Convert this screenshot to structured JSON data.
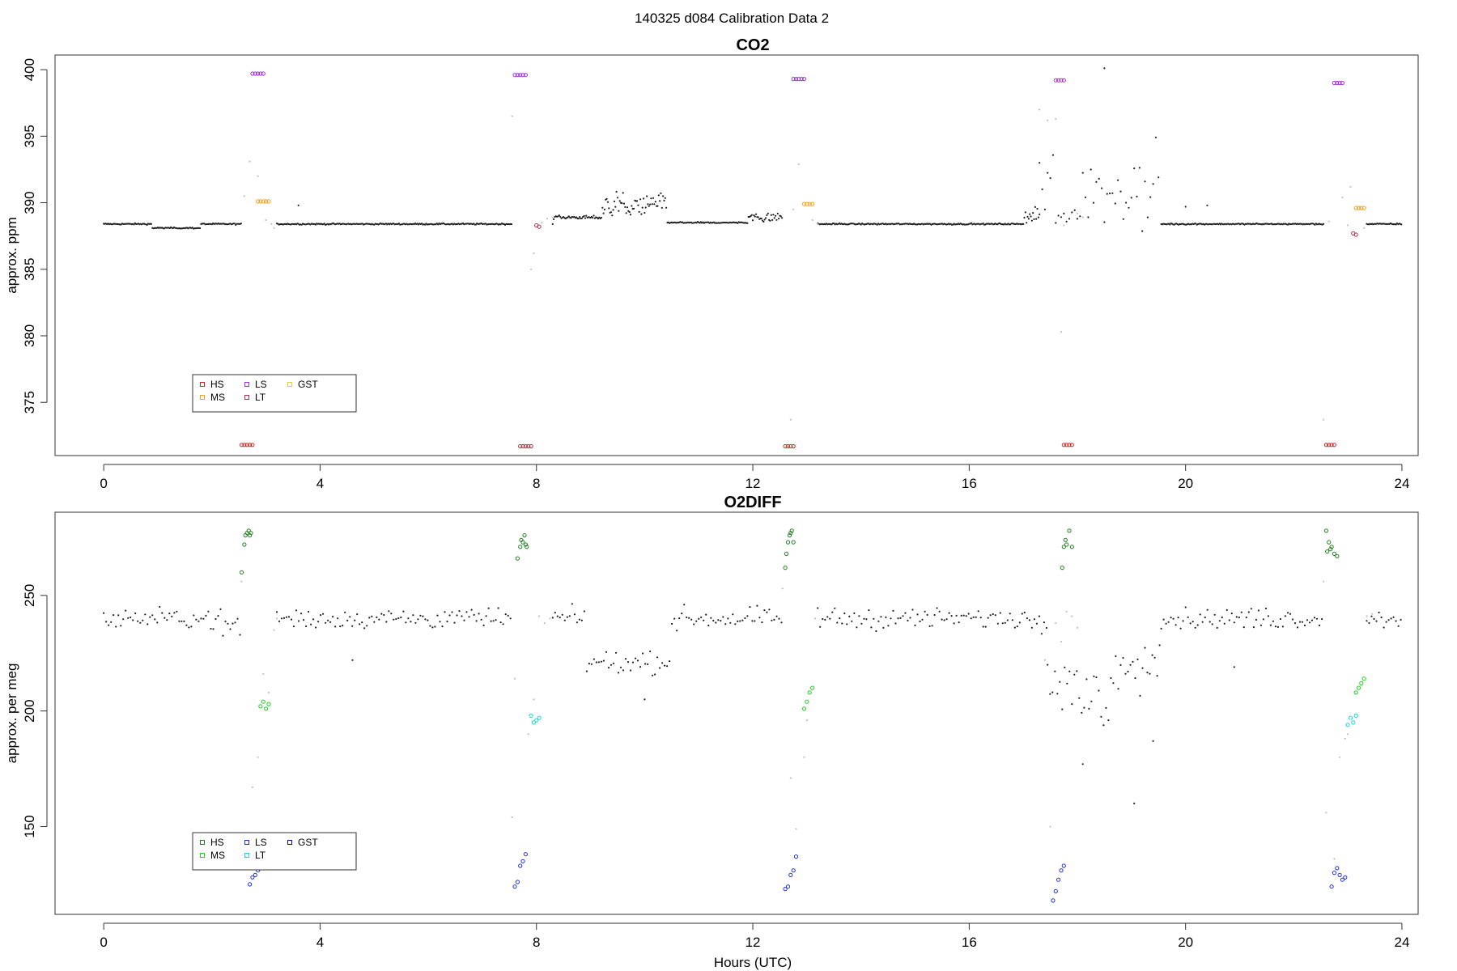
{
  "page": {
    "suptitle": "140325   d084   Calibration Data 2"
  },
  "chart_data": [
    {
      "type": "scatter",
      "title": "CO2",
      "xlabel": "",
      "ylabel": "approx. ppm",
      "xlim": [
        -0.9,
        24.3
      ],
      "ylim": [
        371.0,
        401.1
      ],
      "xticks": [
        0,
        4,
        8,
        12,
        16,
        20,
        24
      ],
      "yticks": [
        375,
        380,
        385,
        390,
        395,
        400
      ],
      "legend": {
        "placement": "bottom-left",
        "entries": [
          {
            "label": "HS",
            "color": "#e02020",
            "marker": "open-square"
          },
          {
            "label": "MS",
            "color": "#f0a020",
            "marker": "open-square"
          },
          {
            "label": "LS",
            "color": "#a030e0",
            "marker": "open-square"
          },
          {
            "label": "LT",
            "color": "#b03050",
            "marker": "open-square"
          },
          {
            "label": "GST",
            "color": "#e8d020",
            "marker": "open-square"
          }
        ]
      },
      "series": [
        {
          "name": "HS",
          "color": "#e02020",
          "marker": "open-circle",
          "x": [
            2.55,
            2.6,
            2.65,
            2.7,
            2.75,
            7.7,
            7.75,
            7.8,
            7.85,
            7.9,
            12.6,
            12.65,
            12.7,
            12.75,
            17.75,
            17.8,
            17.85,
            17.9,
            22.6,
            22.65,
            22.7,
            22.75
          ],
          "y": [
            371.8,
            371.8,
            371.8,
            371.8,
            371.8,
            371.7,
            371.7,
            371.7,
            371.7,
            371.7,
            371.7,
            371.7,
            371.7,
            371.7,
            371.8,
            371.8,
            371.8,
            371.8,
            371.8,
            371.8,
            371.8,
            371.8
          ]
        },
        {
          "name": "MS",
          "color": "#f0a020",
          "marker": "open-circle",
          "x": [
            2.85,
            2.9,
            2.95,
            3.0,
            3.05,
            12.95,
            13.0,
            13.05,
            13.1,
            23.15,
            23.2,
            23.25,
            23.3
          ],
          "y": [
            390.1,
            390.1,
            390.1,
            390.1,
            390.1,
            389.9,
            389.9,
            389.9,
            389.9,
            389.6,
            389.6,
            389.6,
            389.6
          ]
        },
        {
          "name": "LS",
          "color": "#a030e0",
          "marker": "open-circle",
          "x": [
            2.75,
            2.8,
            2.85,
            2.9,
            2.95,
            7.6,
            7.65,
            7.7,
            7.75,
            7.8,
            12.75,
            12.8,
            12.85,
            12.9,
            12.95,
            17.6,
            17.65,
            17.7,
            17.75,
            22.75,
            22.8,
            22.85,
            22.9
          ],
          "y": [
            399.7,
            399.7,
            399.7,
            399.7,
            399.7,
            399.6,
            399.6,
            399.6,
            399.6,
            399.6,
            399.3,
            399.3,
            399.3,
            399.3,
            399.3,
            399.2,
            399.2,
            399.2,
            399.2,
            399.0,
            399.0,
            399.0,
            399.0
          ]
        },
        {
          "name": "LT",
          "color": "#b03050",
          "marker": "open-circle",
          "x": [
            8.0,
            8.05,
            23.1,
            23.15
          ],
          "y": [
            388.3,
            388.2,
            387.7,
            387.6
          ]
        },
        {
          "name": "GST",
          "color": "#e8d020",
          "marker": "open-circle",
          "x": [],
          "y": []
        },
        {
          "name": "",
          "color": "#222222",
          "marker": "dot",
          "generator": "baseline-co2"
        },
        {
          "name": "",
          "color": "#c0c0c0",
          "marker": "dot",
          "x": [
            2.6,
            2.7,
            2.85,
            3.0,
            3.1,
            3.15,
            7.55,
            7.9,
            7.95,
            8.1,
            8.2,
            8.3,
            12.7,
            12.75,
            12.85,
            13.1,
            13.2,
            17.3,
            17.45,
            17.6,
            17.7,
            17.75,
            18.0,
            18.1,
            22.55,
            22.65,
            22.9,
            23.0,
            23.05,
            23.3
          ],
          "y": [
            390.5,
            393.1,
            392.0,
            388.7,
            388.4,
            388.1,
            396.5,
            385.0,
            386.2,
            388.5,
            388.8,
            388.9,
            373.7,
            389.5,
            392.9,
            388.7,
            388.4,
            397.0,
            396.2,
            396.3,
            380.3,
            388.3,
            389.2,
            388.9,
            373.7,
            388.6,
            390.4,
            388.3,
            391.2,
            388.1
          ]
        }
      ]
    },
    {
      "type": "scatter",
      "title": "O2DIFF",
      "xlabel": "Hours (UTC)",
      "ylabel": "approx. per meg",
      "xlim": [
        -0.9,
        24.3
      ],
      "ylim": [
        112,
        286
      ],
      "xticks": [
        0,
        4,
        8,
        12,
        16,
        20,
        24
      ],
      "yticks": [
        150,
        200,
        250
      ],
      "legend": {
        "placement": "bottom-left",
        "entries": [
          {
            "label": "HS",
            "color": "#208020",
            "marker": "open-square"
          },
          {
            "label": "MS",
            "color": "#20d020",
            "marker": "open-square"
          },
          {
            "label": "LS",
            "color": "#2030e0",
            "marker": "open-square"
          },
          {
            "label": "LT",
            "color": "#20d0d0",
            "marker": "open-square"
          },
          {
            "label": "GST",
            "color": "#101090",
            "marker": "open-square"
          }
        ]
      },
      "series": [
        {
          "name": "HS",
          "color": "#208020",
          "marker": "open-circle",
          "x": [
            2.55,
            2.6,
            2.62,
            2.65,
            2.68,
            2.7,
            2.72,
            7.65,
            7.7,
            7.72,
            7.75,
            7.78,
            7.8,
            7.82,
            12.6,
            12.62,
            12.65,
            12.68,
            12.7,
            12.72,
            12.75,
            17.72,
            17.75,
            17.78,
            17.8,
            17.85,
            17.9,
            22.6,
            22.62,
            22.65,
            22.68,
            22.7,
            22.75,
            22.8
          ],
          "y": [
            260,
            272,
            276,
            277,
            278,
            276,
            277,
            266,
            271,
            274,
            273,
            276,
            272,
            271,
            262,
            268,
            273,
            276,
            277,
            278,
            273,
            262,
            271,
            274,
            272,
            278,
            271,
            278,
            269,
            273,
            270,
            271,
            268,
            267
          ]
        },
        {
          "name": "MS",
          "color": "#20d020",
          "marker": "open-circle",
          "x": [
            2.9,
            2.95,
            3.0,
            3.05,
            12.95,
            13.0,
            13.05,
            13.1,
            23.15,
            23.2,
            23.25,
            23.3
          ],
          "y": [
            202,
            204,
            201,
            203,
            201,
            204,
            208,
            210,
            208,
            210,
            212,
            214
          ]
        },
        {
          "name": "LS",
          "color": "#2030e0",
          "marker": "open-circle",
          "x": [
            2.7,
            2.75,
            2.8,
            2.85,
            7.6,
            7.65,
            7.7,
            7.75,
            7.8,
            12.6,
            12.65,
            12.7,
            12.75,
            12.8,
            17.55,
            17.6,
            17.65,
            17.7,
            17.75,
            22.7,
            22.75,
            22.8,
            22.85,
            22.9,
            22.95
          ],
          "y": [
            125,
            128,
            129,
            131,
            124,
            126,
            133,
            135,
            138,
            123,
            124,
            129,
            131,
            137,
            118,
            122,
            127,
            131,
            133,
            124,
            130,
            132,
            129,
            127,
            128
          ]
        },
        {
          "name": "LT",
          "color": "#20d0d0",
          "marker": "open-circle",
          "x": [
            7.9,
            7.95,
            8.0,
            8.05,
            23.0,
            23.05,
            23.1,
            23.15
          ],
          "y": [
            198,
            195,
            196,
            197,
            194,
            197,
            195,
            198
          ]
        },
        {
          "name": "GST",
          "color": "#101090",
          "marker": "open-circle",
          "x": [],
          "y": []
        },
        {
          "name": "",
          "color": "#222222",
          "marker": "dot",
          "generator": "baseline-o2"
        },
        {
          "name": "",
          "color": "#c0c0c0",
          "marker": "dot",
          "x": [
            2.55,
            2.75,
            2.85,
            2.95,
            3.05,
            3.15,
            3.2,
            7.55,
            7.6,
            7.85,
            7.95,
            8.05,
            8.15,
            8.25,
            12.55,
            12.7,
            12.8,
            12.95,
            13.0,
            13.15,
            17.4,
            17.5,
            17.6,
            17.7,
            17.8,
            17.9,
            18.0,
            22.55,
            22.6,
            22.75,
            22.85,
            22.95,
            23.0,
            23.35,
            23.45
          ],
          "y": [
            256,
            167,
            180,
            216,
            208,
            235,
            240,
            154,
            214,
            190,
            205,
            241,
            238,
            240,
            253,
            171,
            149,
            180,
            196,
            240,
            222,
            150,
            238,
            230,
            243,
            241,
            236,
            256,
            156,
            136,
            180,
            188,
            190,
            241,
            242
          ]
        }
      ]
    }
  ]
}
